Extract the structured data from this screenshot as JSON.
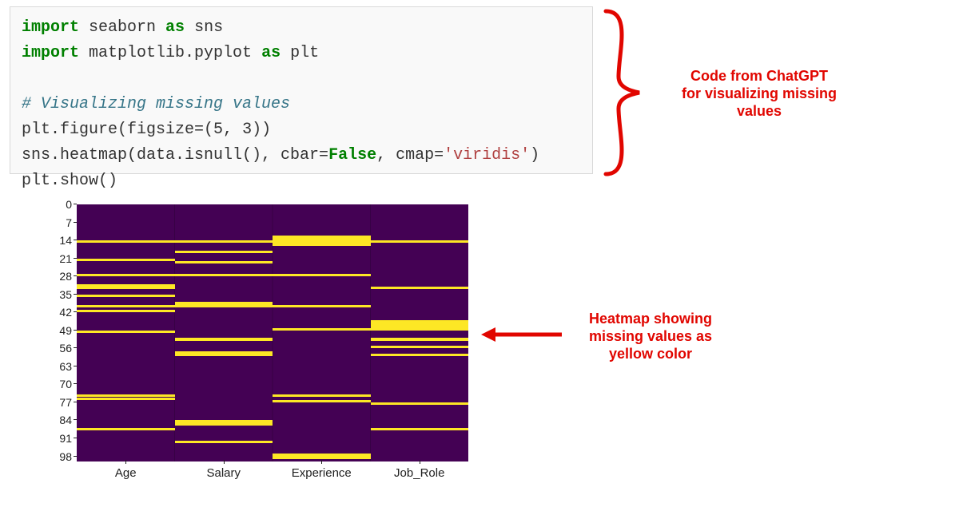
{
  "code": {
    "lines": [
      {
        "tokens": [
          {
            "t": "import",
            "c": "kw"
          },
          {
            "t": " seaborn "
          },
          {
            "t": "as",
            "c": "kw"
          },
          {
            "t": " sns"
          }
        ]
      },
      {
        "tokens": [
          {
            "t": "import",
            "c": "kw"
          },
          {
            "t": " matplotlib.pyplot "
          },
          {
            "t": "as",
            "c": "kw"
          },
          {
            "t": " plt"
          }
        ]
      },
      {
        "tokens": []
      },
      {
        "tokens": [
          {
            "t": "# Visualizing missing values",
            "c": "cmt"
          }
        ]
      },
      {
        "tokens": [
          {
            "t": "plt.figure(figsize=("
          },
          {
            "t": "5"
          },
          {
            "t": ", "
          },
          {
            "t": "3"
          },
          {
            "t": "))"
          }
        ]
      },
      {
        "tokens": [
          {
            "t": "sns.heatmap(data.isnull(), cbar="
          },
          {
            "t": "False",
            "c": "bool"
          },
          {
            "t": ", cmap="
          },
          {
            "t": "'viridis'",
            "c": "str"
          },
          {
            "t": ")"
          }
        ]
      },
      {
        "tokens": [
          {
            "t": "plt.show()"
          }
        ]
      }
    ],
    "cell_bg": "#f9f9f9",
    "cell_border": "#d9d9d9",
    "font_size": 20,
    "line_height": 32,
    "colors": {
      "keyword": "#008000",
      "comment": "#367588",
      "bool": "#008000",
      "string": "#b04040",
      "text": "#333333"
    }
  },
  "heatmap": {
    "type": "heatmap",
    "columns": [
      "Age",
      "Salary",
      "Experience",
      "Job_Role"
    ],
    "row_count": 100,
    "y_ticks": [
      0,
      7,
      14,
      21,
      28,
      35,
      42,
      49,
      56,
      63,
      70,
      77,
      84,
      91,
      98
    ],
    "missing_rows_per_col": {
      "Age": [
        14,
        21,
        27,
        31,
        32,
        35,
        39,
        41,
        49,
        74,
        75,
        87
      ],
      "Salary": [
        14,
        18,
        22,
        27,
        38,
        39,
        52,
        57,
        58,
        84,
        85,
        92
      ],
      "Experience": [
        12,
        13,
        14,
        27,
        39,
        48,
        74,
        76,
        97,
        98
      ],
      "Job_Role": [
        14,
        32,
        45,
        46,
        47,
        52,
        55,
        58,
        77,
        87
      ]
    },
    "row_thickness_overrides": {
      "Age:31": 2,
      "Experience:13": 2,
      "Experience:14": 2,
      "Job_Role:46": 2,
      "Job_Role:47": 2
    },
    "colors": {
      "background": "#440154",
      "missing": "#fde725",
      "tick_text": "#222222"
    },
    "tick_fontsize": 14,
    "xlabel_fontsize": 15,
    "col_sep_color": "rgba(30,0,40,0.35)"
  },
  "annotations": {
    "code_annot": {
      "lines": [
        "Code from ChatGPT",
        "for visualizing missing",
        "values"
      ],
      "color": "#e10600",
      "font_size": 18,
      "font_weight": 700,
      "brace": {
        "stroke": "#e10600",
        "stroke_width": 5
      }
    },
    "heatmap_annot": {
      "lines": [
        "Heatmap showing",
        "missing values as",
        "yellow color"
      ],
      "color": "#e10600",
      "font_size": 18,
      "font_weight": 700,
      "arrow": {
        "stroke": "#e10600",
        "stroke_width": 5
      }
    }
  }
}
